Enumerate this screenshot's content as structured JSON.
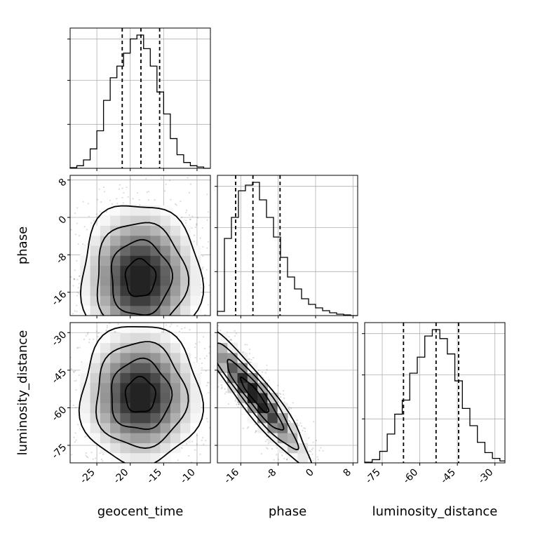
{
  "chart_data": {
    "type": "corner",
    "parameters": [
      "geocent_time",
      "phase",
      "luminosity_distance"
    ],
    "ranges": {
      "geocent_time": [
        -29,
        -8
      ],
      "phase": [
        -21,
        9
      ],
      "luminosity_distance": [
        -82,
        -26
      ]
    },
    "ticks": {
      "geocent_time": [
        "-25",
        "-20",
        "-15",
        "-10"
      ],
      "phase": [
        "-16",
        "-8",
        "0",
        "8"
      ],
      "luminosity_distance": [
        "-75",
        "-60",
        "-45",
        "-30"
      ]
    },
    "quantiles": {
      "geocent_time": [
        -21.2,
        -18.4,
        -15.6
      ],
      "phase": [
        -17.1,
        -13.4,
        -7.6
      ],
      "luminosity_distance": [
        -66.5,
        -53.5,
        -44.5
      ]
    },
    "histograms": {
      "geocent_time": {
        "edges": [
          -29,
          -28,
          -27,
          -26,
          -25,
          -24,
          -23,
          -22,
          -21,
          -20,
          -19,
          -18,
          -17,
          -16,
          -15,
          -14,
          -13,
          -12,
          -11,
          -10,
          -9,
          -8
        ],
        "counts": [
          1,
          4,
          13,
          30,
          58,
          105,
          140,
          158,
          178,
          200,
          206,
          185,
          158,
          118,
          84,
          46,
          21,
          9,
          4,
          2,
          0
        ]
      },
      "phase": {
        "edges": [
          -21,
          -19.5,
          -18,
          -16.5,
          -15,
          -13.5,
          -12,
          -10.5,
          -9,
          -7.5,
          -6,
          -4.5,
          -3,
          -1.5,
          0,
          1.5,
          3,
          4.5,
          6,
          7.5,
          9
        ],
        "counts": [
          6,
          110,
          140,
          178,
          186,
          190,
          165,
          140,
          112,
          83,
          55,
          38,
          24,
          16,
          11,
          7,
          4,
          2,
          1,
          0
        ]
      },
      "luminosity_distance": {
        "edges": [
          -82,
          -79,
          -76,
          -73,
          -70,
          -67,
          -64,
          -61,
          -58,
          -55,
          -52,
          -49,
          -46,
          -43,
          -40,
          -37,
          -34,
          -31,
          -28,
          -26
        ],
        "counts": [
          1,
          5,
          18,
          45,
          76,
          98,
          140,
          165,
          198,
          208,
          194,
          170,
          128,
          85,
          58,
          32,
          16,
          7,
          3
        ]
      }
    },
    "panels_2d": [
      {
        "x": "geocent_time",
        "y": "phase",
        "center": [
          -18.5,
          -13
        ],
        "spread": [
          4.5,
          8
        ],
        "rho": 0
      },
      {
        "x": "geocent_time",
        "y": "luminosity_distance",
        "center": [
          -18.5,
          -55
        ],
        "spread": [
          4.5,
          14
        ],
        "rho": 0
      },
      {
        "x": "phase",
        "y": "luminosity_distance",
        "center": [
          -13,
          -55
        ],
        "spread": [
          6,
          14
        ],
        "rho": -0.93
      }
    ],
    "axis_labels": {
      "x": [
        "geocent_time",
        "phase",
        "luminosity_distance"
      ],
      "y": [
        "phase",
        "luminosity_distance"
      ]
    }
  }
}
